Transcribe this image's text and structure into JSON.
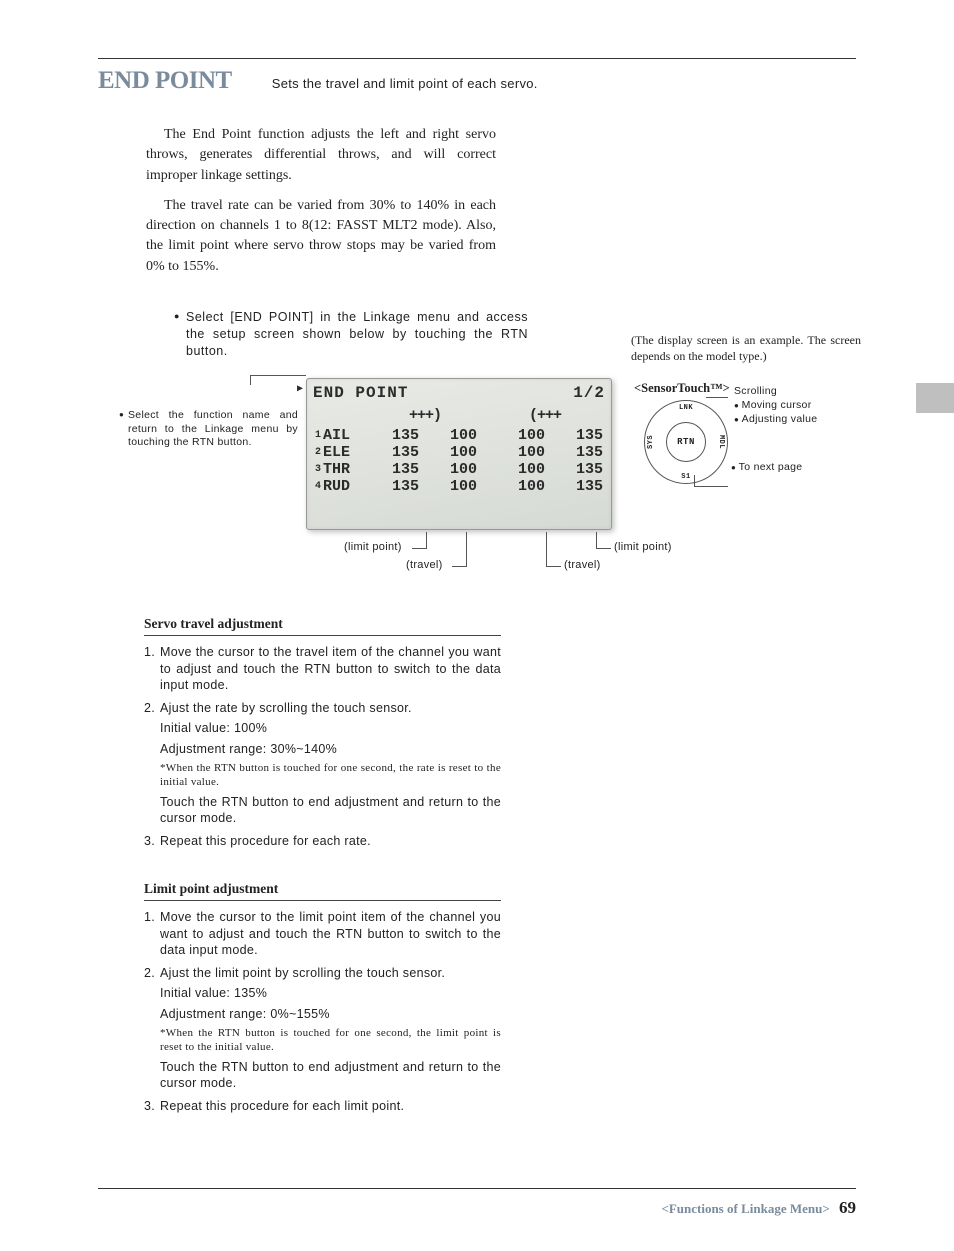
{
  "title": "END POINT",
  "subtitle": "Sets the travel and limit point of each servo.",
  "intro": {
    "p1": "The End Point function adjusts the left and right servo throws, generates differential throws, and will correct improper linkage settings.",
    "p2": "The travel rate can be varied from 30% to 140% in each direction on channels 1 to 8(12: FASST MLT2 mode). Also, the limit point where servo throw stops may be varied from 0% to 155%."
  },
  "select_step": "Select [END POINT] in the Linkage menu and access the setup screen shown below by touching the RTN button.",
  "display_note": "(The display screen is an example. The screen depends on the model type.)",
  "left_note": "Select the function name and return to the Linkage menu by touching the RTN button.",
  "lcd": {
    "title": "END POINT",
    "page": "1/2",
    "arrows_left": "+++)",
    "arrows_right": "(+++",
    "rows": [
      {
        "n": "1",
        "name": "AIL",
        "v": [
          "135",
          "100",
          "100",
          "135"
        ]
      },
      {
        "n": "2",
        "name": "ELE",
        "v": [
          "135",
          "100",
          "100",
          "135"
        ]
      },
      {
        "n": "3",
        "name": "THR",
        "v": [
          "135",
          "100",
          "100",
          "135"
        ]
      },
      {
        "n": "4",
        "name": "RUD",
        "v": [
          "135",
          "100",
          "100",
          "135"
        ]
      }
    ]
  },
  "callouts": {
    "limit_l": "(limit point)",
    "limit_r": "(limit point)",
    "travel_l": "(travel)",
    "travel_r": "(travel)"
  },
  "sensor": {
    "title": "<SensorTouch™>",
    "center": "RTN",
    "top": "LNK",
    "bottom": "S1",
    "left": "SYS",
    "right": "MDL",
    "items": [
      "Scrolling",
      "Moving cursor",
      "Adjusting value"
    ],
    "next": "To next page"
  },
  "sec1": {
    "h": "Servo travel adjustment",
    "s1": "Move the cursor to the travel item of the channel you want to adjust and touch the RTN button to switch to the data input mode.",
    "s2": "Ajust the rate by scrolling the touch sensor.",
    "s2a": "Initial value: 100%",
    "s2b": "Adjustment range: 30%~140%",
    "s2n": "*When the RTN button is touched for one second, the rate is reset to the initial value.",
    "s2c": "Touch the RTN button to end adjustment and return to the cursor mode.",
    "s3": "Repeat this procedure for each rate."
  },
  "sec2": {
    "h": "Limit point adjustment",
    "s1": "Move the cursor to the limit point item of the channel you want to adjust and touch the RTN button to switch to the data input mode.",
    "s2": "Ajust the limit point by scrolling the touch sensor.",
    "s2a": "Initial value: 135%",
    "s2b": "Adjustment range: 0%~155%",
    "s2n": "*When the RTN button is touched for one second, the limit point is reset to the initial value.",
    "s2c": "Touch the RTN button to end adjustment and return to the cursor mode.",
    "s3": "Repeat this procedure for each limit point."
  },
  "footer": {
    "label": "<Functions of Linkage Menu>",
    "page": "69"
  }
}
